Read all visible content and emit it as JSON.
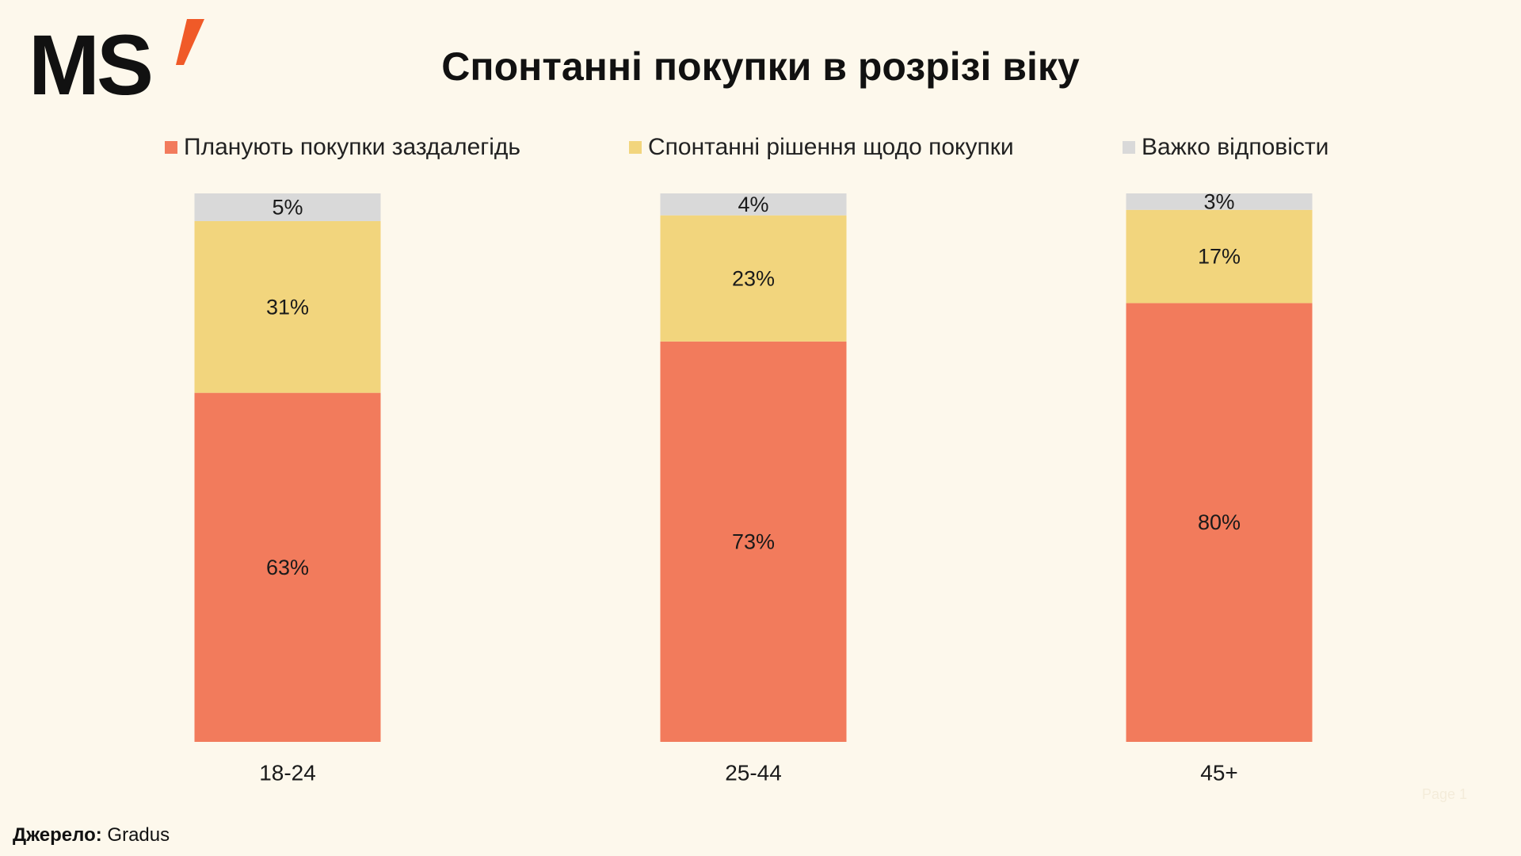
{
  "logo": {
    "text": "MS",
    "accent_color": "#f05a28"
  },
  "title": "Спонтанні покупки в розрізі віку",
  "source": {
    "label": "Джерело:",
    "value": "Gradus"
  },
  "page_mark": "Page 1",
  "chart_data": {
    "type": "bar",
    "stacked": true,
    "title": "Спонтанні покупки в розрізі віку",
    "categories": [
      "18-24",
      "25-44",
      "45+"
    ],
    "series": [
      {
        "name": "Планують покупки заздалегідь",
        "color": "#f27b5c",
        "values": [
          63,
          73,
          80
        ],
        "labels": [
          "63%",
          "73%",
          "80%"
        ]
      },
      {
        "name": "Спонтанні рішення щодо покупки",
        "color": "#f2d57d",
        "values": [
          31,
          23,
          17
        ],
        "labels": [
          "31%",
          "23%",
          "17%"
        ]
      },
      {
        "name": "Важко відповісти",
        "color": "#d9d9d9",
        "values": [
          5,
          4,
          3
        ],
        "labels": [
          "5%",
          "4%",
          "3%"
        ]
      }
    ],
    "ylim": [
      0,
      100
    ],
    "grid": false,
    "legend_position": "top"
  }
}
